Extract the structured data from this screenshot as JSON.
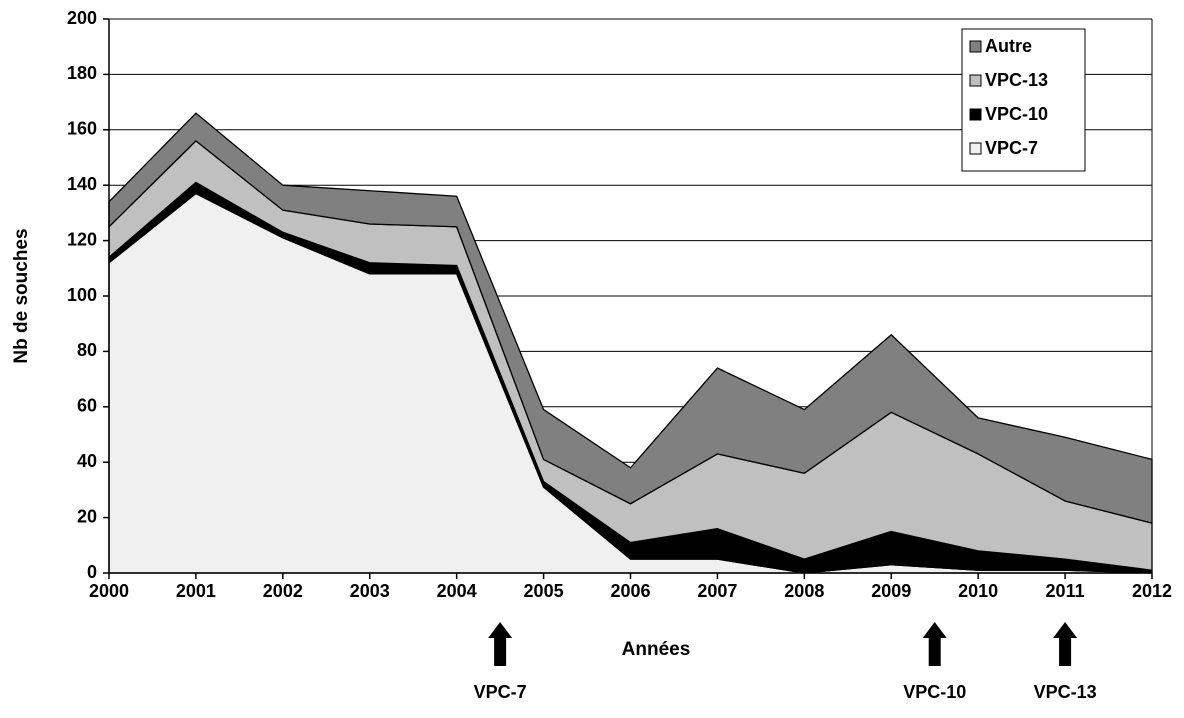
{
  "chart_data": {
    "type": "stacked_area",
    "x_label": "Années",
    "y_label": "Nb de souches",
    "x": [
      2000,
      2001,
      2002,
      2003,
      2004,
      2005,
      2006,
      2007,
      2008,
      2009,
      2010,
      2011,
      2012
    ],
    "xlim": [
      2000,
      2012
    ],
    "xticks": [
      2000,
      2001,
      2002,
      2003,
      2004,
      2005,
      2006,
      2007,
      2008,
      2009,
      2010,
      2011,
      2012
    ],
    "ylim": [
      0,
      200
    ],
    "yticks": [
      0,
      20,
      40,
      60,
      80,
      100,
      120,
      140,
      160,
      180,
      200
    ],
    "grid": true,
    "legend": "upper right",
    "series": [
      {
        "name": "VPC-7",
        "color": "#f0f0f0",
        "values": [
          112,
          137,
          121,
          108,
          108,
          31,
          5,
          5,
          0,
          3,
          1,
          1,
          0
        ]
      },
      {
        "name": "VPC-10",
        "color": "#000000",
        "values": [
          2,
          4,
          2,
          4,
          3,
          2,
          6,
          11,
          5,
          12,
          7,
          4,
          1
        ]
      },
      {
        "name": "VPC-13",
        "color": "#c0c0c0",
        "values": [
          11,
          15,
          8,
          14,
          14,
          8,
          14,
          27,
          31,
          43,
          35,
          21,
          17
        ]
      },
      {
        "name": "Autre",
        "color": "#808080",
        "values": [
          9,
          10,
          9,
          12,
          11,
          18,
          13,
          31,
          23,
          28,
          13,
          23,
          23
        ]
      }
    ],
    "annotations": [
      {
        "text": "VPC-7",
        "x": 2004.5
      },
      {
        "text": "VPC-10",
        "x": 2009.5
      },
      {
        "text": "VPC-13",
        "x": 2011
      }
    ]
  }
}
